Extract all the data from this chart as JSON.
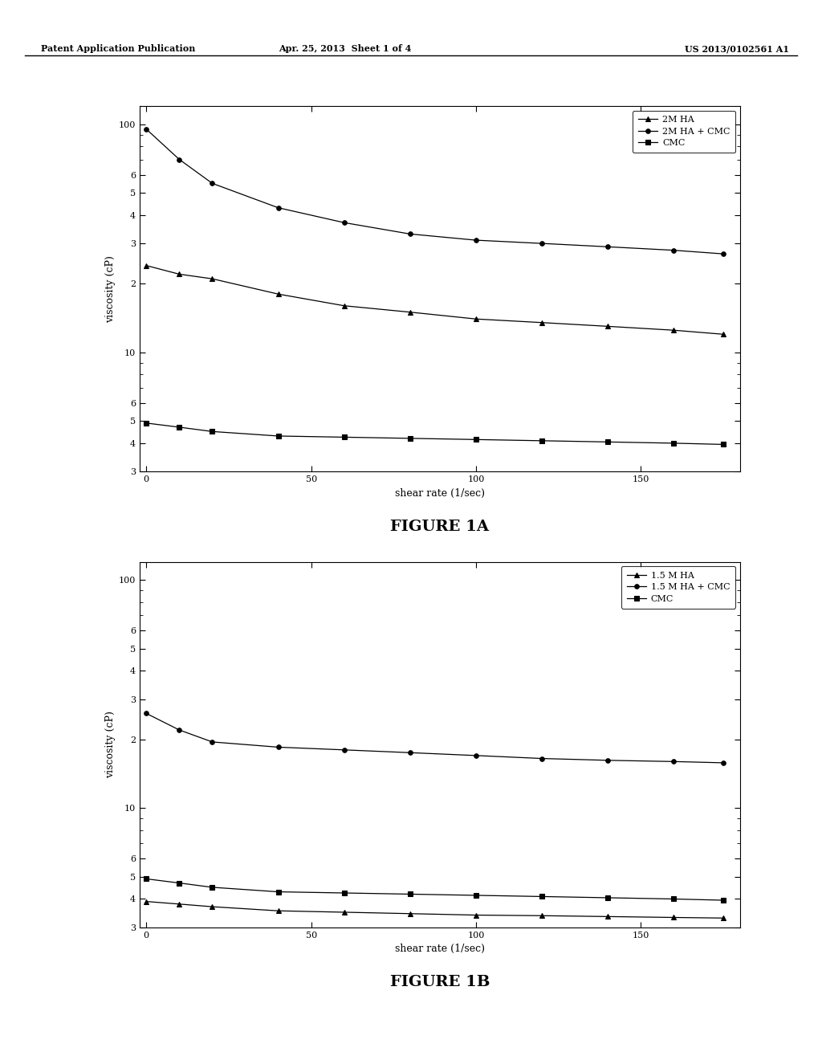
{
  "header_left": "Patent Application Publication",
  "header_center": "Apr. 25, 2013  Sheet 1 of 4",
  "header_right": "US 2013/0102561 A1",
  "fig1a": {
    "title": "FIGURE 1A",
    "xlabel": "shear rate (1/sec)",
    "ylabel": "viscosity (cP)",
    "ylim_log": [
      3,
      120
    ],
    "xlim": [
      -2,
      180
    ],
    "xticks": [
      0,
      50,
      100,
      150
    ],
    "series": [
      {
        "label": "2M HA",
        "marker": "^",
        "x": [
          0,
          10,
          20,
          40,
          60,
          80,
          100,
          120,
          140,
          160,
          175
        ],
        "y": [
          24,
          22,
          21,
          18,
          16,
          15,
          14,
          13.5,
          13,
          12.5,
          12
        ]
      },
      {
        "label": "2M HA + CMC",
        "marker": "o",
        "x": [
          0,
          10,
          20,
          40,
          60,
          80,
          100,
          120,
          140,
          160,
          175
        ],
        "y": [
          95,
          70,
          55,
          43,
          37,
          33,
          31,
          30,
          29,
          28,
          27
        ]
      },
      {
        "label": "CMC",
        "marker": "s",
        "x": [
          0,
          10,
          20,
          40,
          60,
          80,
          100,
          120,
          140,
          160,
          175
        ],
        "y": [
          4.9,
          4.7,
          4.5,
          4.3,
          4.25,
          4.2,
          4.15,
          4.1,
          4.05,
          4.0,
          3.95
        ]
      }
    ]
  },
  "fig1b": {
    "title": "FIGURE 1B",
    "xlabel": "shear rate (1/sec)",
    "ylabel": "viscosity (cP)",
    "ylim_log": [
      3,
      120
    ],
    "xlim": [
      -2,
      180
    ],
    "xticks": [
      0,
      50,
      100,
      150
    ],
    "series": [
      {
        "label": "1.5 M HA",
        "marker": "^",
        "x": [
          0,
          10,
          20,
          40,
          60,
          80,
          100,
          120,
          140,
          160,
          175
        ],
        "y": [
          3.9,
          3.8,
          3.7,
          3.55,
          3.5,
          3.45,
          3.4,
          3.38,
          3.35,
          3.32,
          3.3
        ]
      },
      {
        "label": "1.5 M HA + CMC",
        "marker": "o",
        "x": [
          0,
          10,
          20,
          40,
          60,
          80,
          100,
          120,
          140,
          160,
          175
        ],
        "y": [
          26,
          22,
          19.5,
          18.5,
          18.0,
          17.5,
          17.0,
          16.5,
          16.2,
          16.0,
          15.8
        ]
      },
      {
        "label": "CMC",
        "marker": "s",
        "x": [
          0,
          10,
          20,
          40,
          60,
          80,
          100,
          120,
          140,
          160,
          175
        ],
        "y": [
          4.9,
          4.7,
          4.5,
          4.3,
          4.25,
          4.2,
          4.15,
          4.1,
          4.05,
          4.0,
          3.95
        ]
      }
    ]
  },
  "line_color": "#000000",
  "page_bg": "#ffffff",
  "font_size_axis_label": 9,
  "font_size_tick": 8,
  "font_size_legend": 8,
  "font_size_fig_title": 14,
  "font_size_header": 8
}
